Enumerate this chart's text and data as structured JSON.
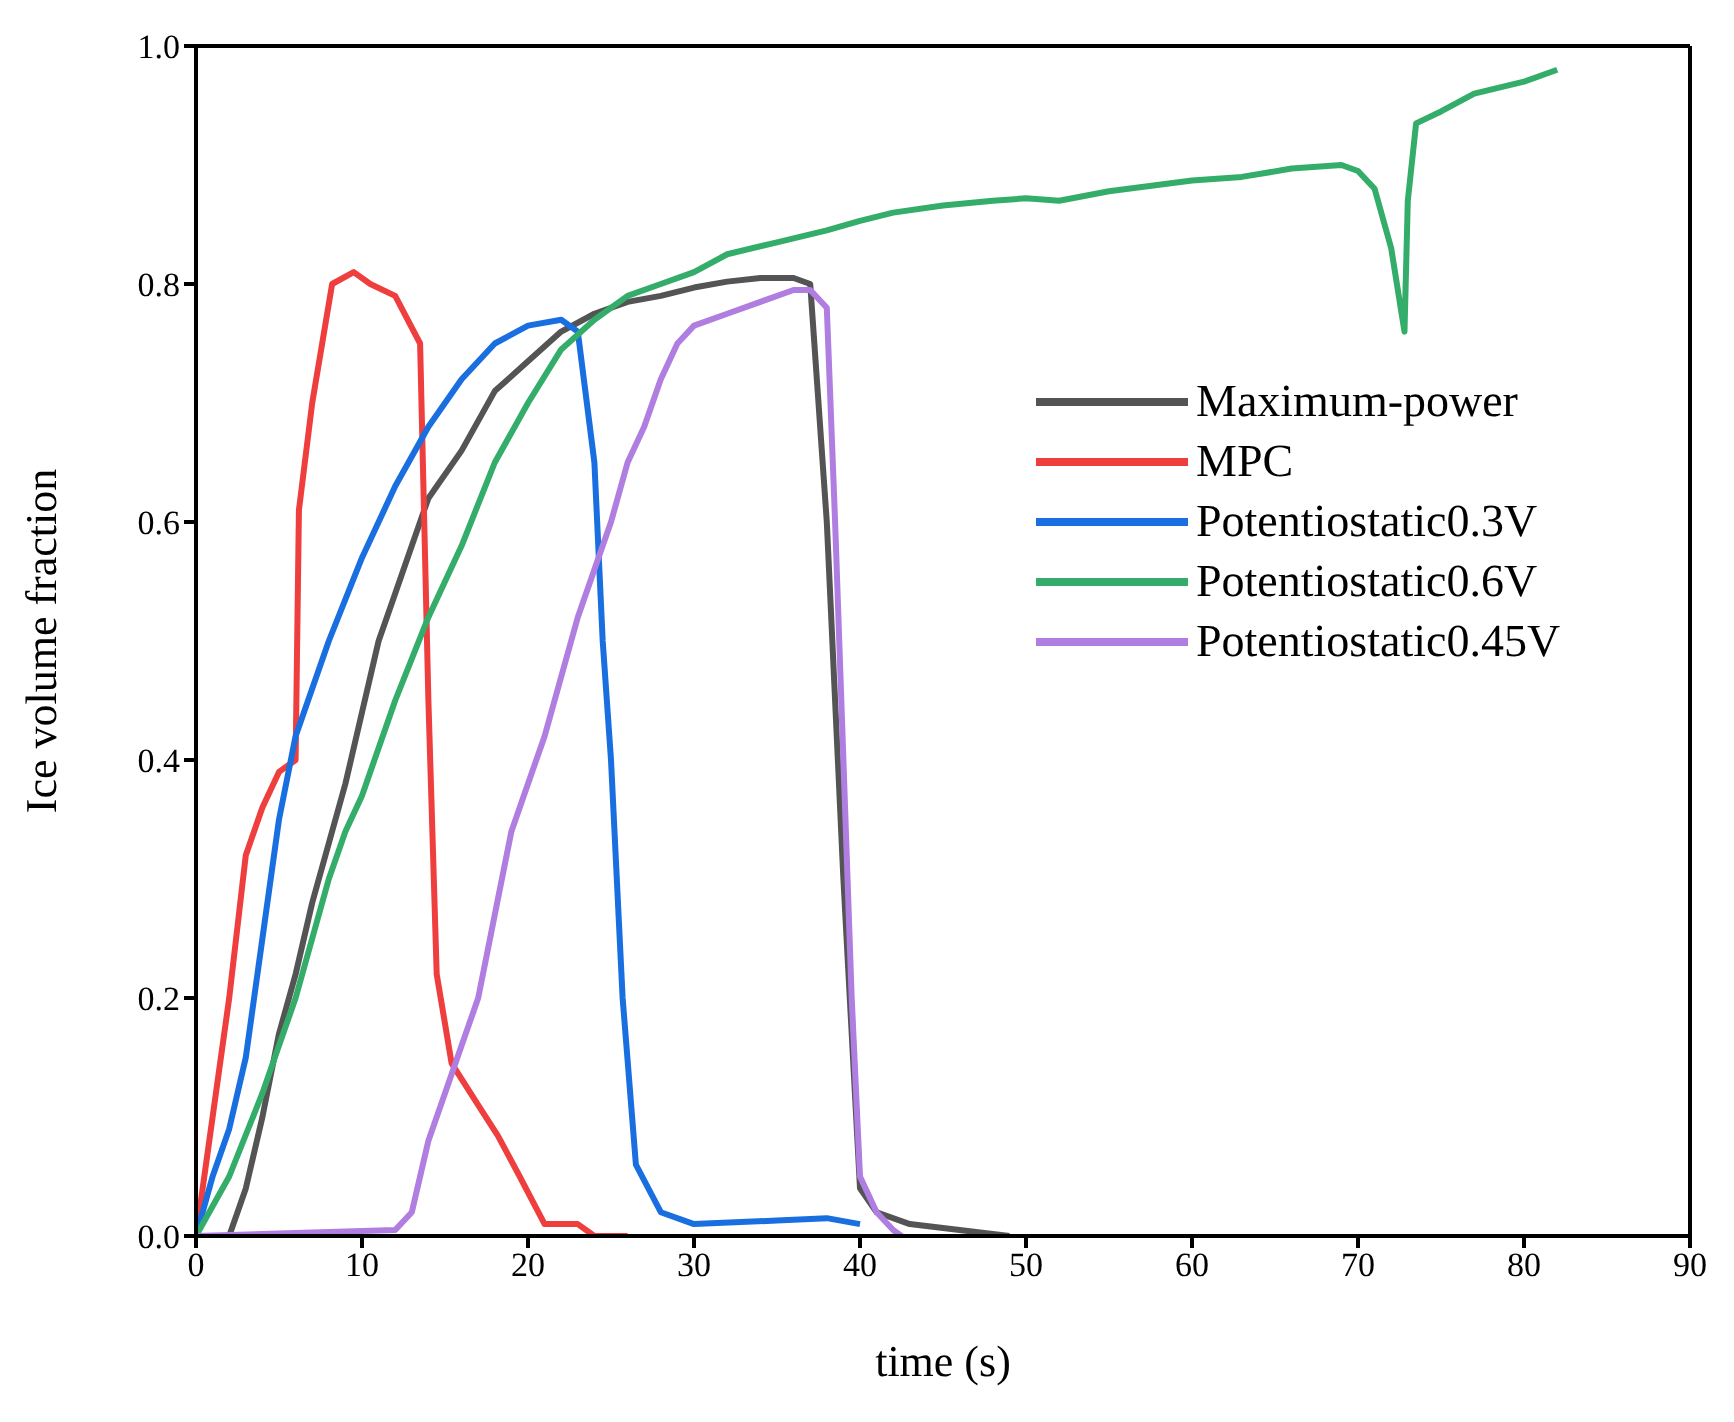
{
  "chart_data": {
    "type": "line",
    "xlabel": "time (s)",
    "ylabel": "Ice volume fraction",
    "xlim": [
      0,
      90
    ],
    "ylim": [
      0,
      1
    ],
    "xticks": [
      0,
      10,
      20,
      30,
      40,
      50,
      60,
      70,
      80,
      90
    ],
    "yticks": [
      {
        "value": 0,
        "label": "0.0"
      },
      {
        "value": 0.2,
        "label": "0.2"
      },
      {
        "value": 0.4,
        "label": "0.4"
      },
      {
        "value": 0.6,
        "label": "0.6"
      },
      {
        "value": 0.8,
        "label": "0.8"
      },
      {
        "value": 1,
        "label": "1.0"
      }
    ],
    "legend": "right",
    "marker": "none",
    "line_style": "solid",
    "series": [
      {
        "name": "Maximum-power",
        "color": "#545454",
        "x": [
          2,
          3,
          4,
          5,
          6,
          7,
          8,
          9,
          10,
          11,
          12,
          13,
          14,
          16,
          18,
          20,
          22,
          24,
          26,
          28,
          30,
          32,
          34,
          36,
          37,
          38,
          39,
          40,
          41,
          43,
          46,
          49
        ],
        "values": [
          0,
          0.04,
          0.1,
          0.17,
          0.22,
          0.28,
          0.33,
          0.38,
          0.44,
          0.5,
          0.54,
          0.58,
          0.62,
          0.66,
          0.71,
          0.735,
          0.76,
          0.775,
          0.785,
          0.79,
          0.797,
          0.802,
          0.805,
          0.805,
          0.8,
          0.6,
          0.3,
          0.04,
          0.02,
          0.01,
          0.005,
          0
        ]
      },
      {
        "name": "MPC",
        "color": "#ef3e3e",
        "x": [
          0,
          1,
          2,
          3,
          4,
          5,
          6,
          6.2,
          7,
          8.2,
          9.5,
          10.5,
          12,
          13.5,
          14,
          14.5,
          15.4,
          17,
          18.2,
          19.5,
          21,
          23,
          24,
          26
        ],
        "values": [
          0,
          0.1,
          0.2,
          0.32,
          0.36,
          0.39,
          0.4,
          0.61,
          0.7,
          0.8,
          0.81,
          0.8,
          0.79,
          0.75,
          0.45,
          0.22,
          0.145,
          0.11,
          0.084,
          0.05,
          0.01,
          0.01,
          0,
          0
        ]
      },
      {
        "name": "Potentiostatic0.3V",
        "color": "#1a6fe0",
        "x": [
          0,
          1,
          2,
          3,
          4,
          5,
          6,
          8,
          10,
          12,
          14,
          16,
          18,
          20,
          22,
          23,
          24,
          24.5,
          25,
          25.7,
          26.5,
          28,
          30,
          35,
          38,
          40
        ],
        "values": [
          0,
          0.05,
          0.09,
          0.15,
          0.25,
          0.35,
          0.42,
          0.5,
          0.57,
          0.63,
          0.68,
          0.72,
          0.75,
          0.765,
          0.77,
          0.76,
          0.65,
          0.5,
          0.4,
          0.2,
          0.06,
          0.02,
          0.01,
          0.013,
          0.015,
          0.01
        ]
      },
      {
        "name": "Potentiostatic0.6V",
        "color": "#34ad6b",
        "x": [
          0,
          2,
          4,
          5,
          6,
          7,
          8,
          9,
          10,
          12,
          14,
          16,
          18,
          20,
          22,
          24,
          26,
          28,
          30,
          32,
          35,
          38,
          40,
          42,
          45,
          48,
          50,
          52,
          55,
          60,
          63,
          66,
          69,
          70,
          71,
          72,
          72.8,
          73,
          73.5,
          75,
          77,
          80,
          82
        ],
        "values": [
          0,
          0.05,
          0.12,
          0.16,
          0.2,
          0.25,
          0.3,
          0.34,
          0.37,
          0.45,
          0.52,
          0.58,
          0.65,
          0.7,
          0.745,
          0.77,
          0.79,
          0.8,
          0.81,
          0.825,
          0.835,
          0.845,
          0.853,
          0.86,
          0.866,
          0.87,
          0.872,
          0.87,
          0.878,
          0.887,
          0.89,
          0.897,
          0.9,
          0.895,
          0.88,
          0.83,
          0.76,
          0.87,
          0.935,
          0.945,
          0.96,
          0.97,
          0.98
        ]
      },
      {
        "name": "Potentiostatic0.45V",
        "color": "#b07de0",
        "x": [
          0,
          12,
          13,
          14,
          15,
          16,
          17,
          18,
          19,
          20,
          21,
          22,
          23,
          24,
          25,
          26,
          27,
          28,
          29,
          30,
          32,
          34,
          36,
          37,
          38,
          38.5,
          39,
          39.5,
          40,
          41,
          42,
          42.5
        ],
        "values": [
          0,
          0.005,
          0.02,
          0.08,
          0.12,
          0.16,
          0.2,
          0.27,
          0.34,
          0.38,
          0.42,
          0.47,
          0.52,
          0.56,
          0.6,
          0.65,
          0.68,
          0.72,
          0.75,
          0.765,
          0.775,
          0.785,
          0.795,
          0.795,
          0.78,
          0.6,
          0.4,
          0.2,
          0.05,
          0.02,
          0.005,
          0
        ]
      }
    ]
  }
}
